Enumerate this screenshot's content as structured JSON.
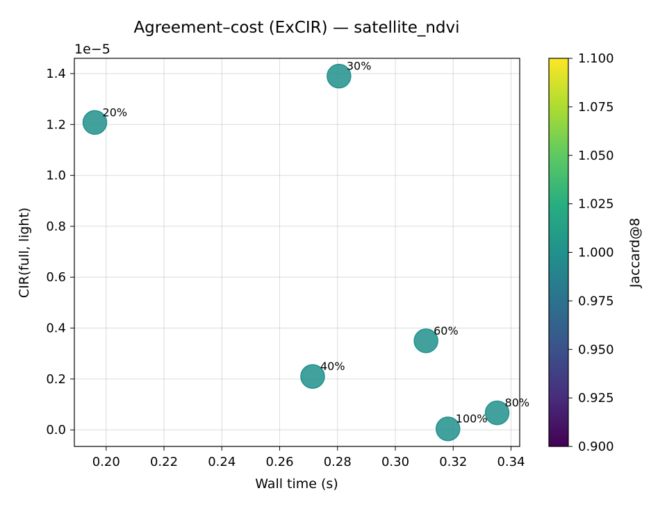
{
  "chart_data": {
    "type": "scatter",
    "title": "Agreement–cost (ExCIR) — satellite_ndvi",
    "xlabel": "Wall time (s)",
    "ylabel": "CIR(full, light)",
    "y_offset_label": "1e−5",
    "xlim": [
      0.189,
      0.343
    ],
    "ylim": [
      -0.065,
      1.46
    ],
    "y_scale_exponent": -5,
    "x_ticks": [
      "0.20",
      "0.22",
      "0.24",
      "0.26",
      "0.28",
      "0.30",
      "0.32",
      "0.34"
    ],
    "y_ticks": [
      "0.0",
      "0.2",
      "0.4",
      "0.6",
      "0.8",
      "1.0",
      "1.2",
      "1.4"
    ],
    "grid": true,
    "points": [
      {
        "label": "20%",
        "x": 0.1961,
        "y": 1.208,
        "jaccard": 1.0
      },
      {
        "label": "30%",
        "x": 0.2805,
        "y": 1.39,
        "jaccard": 1.0
      },
      {
        "label": "40%",
        "x": 0.2714,
        "y": 0.21,
        "jaccard": 1.0
      },
      {
        "label": "60%",
        "x": 0.3106,
        "y": 0.35,
        "jaccard": 1.0
      },
      {
        "label": "80%",
        "x": 0.3352,
        "y": 0.067,
        "jaccard": 1.0
      },
      {
        "label": "100%",
        "x": 0.3182,
        "y": 0.004,
        "jaccard": 1.0
      }
    ],
    "colorbar": {
      "label": "Jaccard@8",
      "range": [
        0.9,
        1.1
      ],
      "ticks": [
        "0.900",
        "0.925",
        "0.950",
        "0.975",
        "1.000",
        "1.025",
        "1.050",
        "1.075",
        "1.100"
      ],
      "colormap": "viridis"
    },
    "marker_color": "#21918c"
  }
}
